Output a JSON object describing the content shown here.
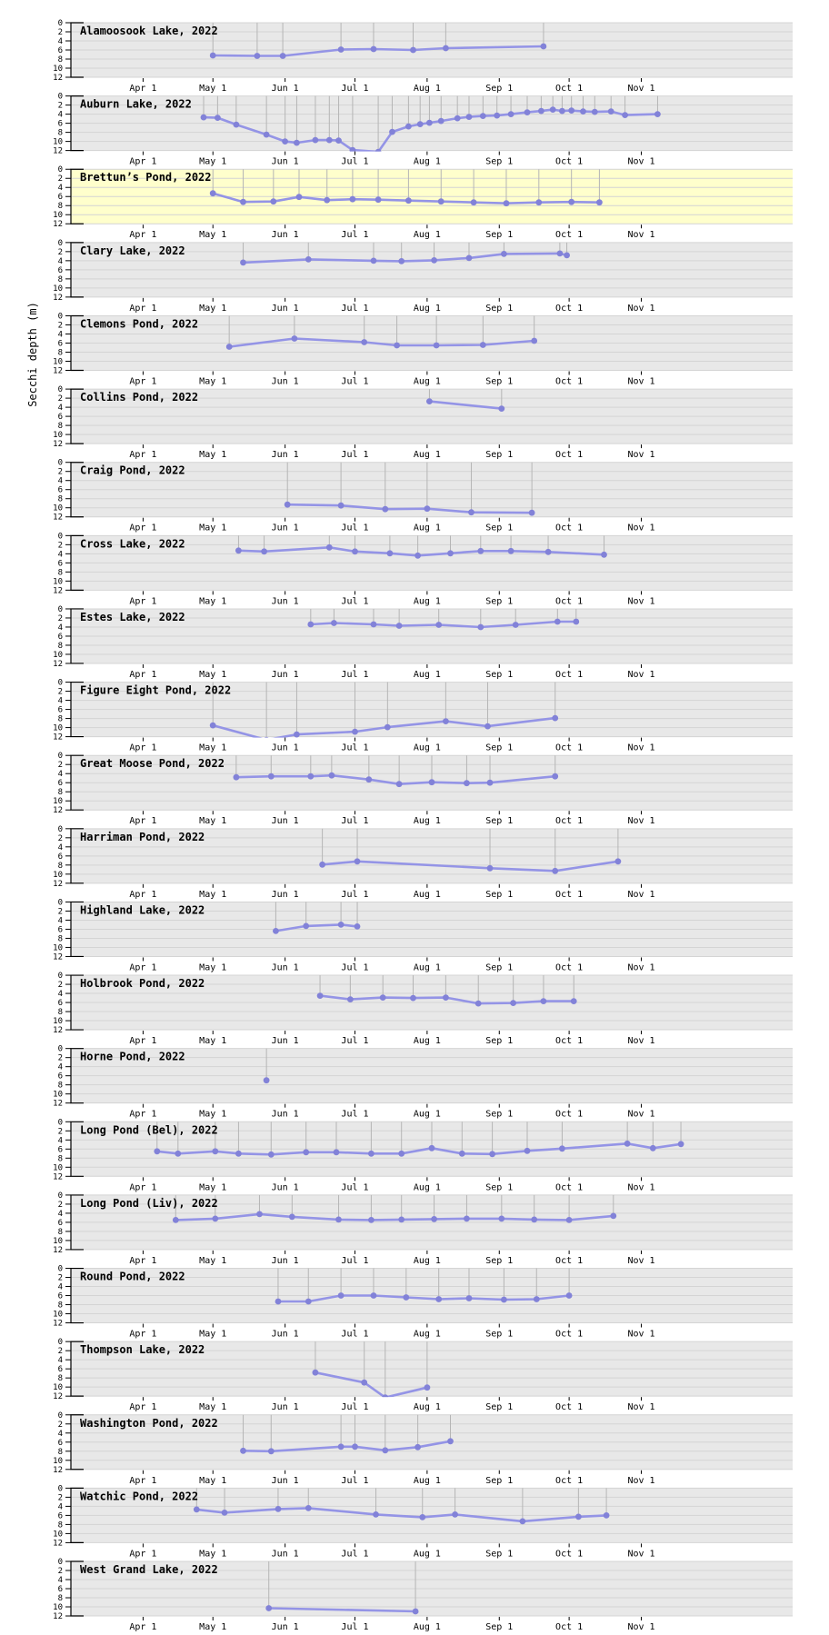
{
  "figure": {
    "ylabel": "Secchi depth (m)",
    "colors": {
      "page_bg": "#ffffff",
      "panel_bg": "#e8e8e8",
      "highlight_bg": "#ffffcc",
      "gridline": "#d4d4d4",
      "drop_line": "#b5b5b5",
      "series_line": "#9494e6",
      "marker": "#8282d8",
      "axis": "#000000"
    },
    "axes": {
      "y_ticks": [
        0,
        2,
        4,
        6,
        8,
        10,
        12
      ],
      "y_domain_m": [
        0,
        12
      ],
      "y_inverted": true,
      "x_tick_labels": [
        "Apr 1",
        "May 1",
        "Jun 1",
        "Jul 1",
        "Aug 1",
        "Sep 1",
        "Oct 1",
        "Nov 1"
      ],
      "x_tick_days": [
        91,
        121,
        152,
        182,
        213,
        244,
        274,
        305
      ],
      "x_domain_days": [
        60,
        370
      ],
      "x_encoding": "day_of_year_2022",
      "grid": "horizontal gridlines every 2 m; gray vertical drop line from surface (0 m) to each observation"
    }
  },
  "chart_data": [
    {
      "type": "line",
      "title": "Alamoosook Lake, 2022",
      "lake": "Alamoosook Lake",
      "year": 2022,
      "highlighted": false,
      "points_day_depth": [
        [
          121,
          7.2
        ],
        [
          140,
          7.3
        ],
        [
          151,
          7.3
        ],
        [
          176,
          5.9
        ],
        [
          190,
          5.8
        ],
        [
          207,
          6.0
        ],
        [
          221,
          5.6
        ],
        [
          263,
          5.2
        ]
      ]
    },
    {
      "type": "line",
      "title": "Auburn Lake, 2022",
      "lake": "Auburn Lake",
      "year": 2022,
      "highlighted": false,
      "points_day_depth": [
        [
          117,
          4.7
        ],
        [
          123,
          4.8
        ],
        [
          131,
          6.3
        ],
        [
          144,
          8.5
        ],
        [
          152,
          10.0
        ],
        [
          157,
          10.3
        ],
        [
          165,
          9.7
        ],
        [
          171,
          9.7
        ],
        [
          175,
          9.8
        ],
        [
          181,
          11.9
        ],
        [
          192,
          12.3
        ],
        [
          198,
          7.9
        ],
        [
          205,
          6.7
        ],
        [
          210,
          6.2
        ],
        [
          214,
          5.9
        ],
        [
          219,
          5.5
        ],
        [
          226,
          4.9
        ],
        [
          231,
          4.6
        ],
        [
          237,
          4.4
        ],
        [
          243,
          4.3
        ],
        [
          249,
          4.0
        ],
        [
          256,
          3.6
        ],
        [
          262,
          3.3
        ],
        [
          267,
          3.0
        ],
        [
          271,
          3.3
        ],
        [
          275,
          3.2
        ],
        [
          280,
          3.4
        ],
        [
          285,
          3.5
        ],
        [
          292,
          3.4
        ],
        [
          298,
          4.2
        ],
        [
          312,
          4.0
        ]
      ]
    },
    {
      "type": "line",
      "title": "Brettun’s Pond, 2022",
      "lake": "Brettun’s Pond",
      "year": 2022,
      "highlighted": true,
      "points_day_depth": [
        [
          121,
          5.3
        ],
        [
          134,
          7.2
        ],
        [
          147,
          7.1
        ],
        [
          158,
          6.1
        ],
        [
          170,
          6.8
        ],
        [
          181,
          6.6
        ],
        [
          192,
          6.7
        ],
        [
          205,
          6.9
        ],
        [
          219,
          7.1
        ],
        [
          233,
          7.3
        ],
        [
          247,
          7.5
        ],
        [
          261,
          7.3
        ],
        [
          275,
          7.2
        ],
        [
          287,
          7.3
        ]
      ]
    },
    {
      "type": "line",
      "title": "Clary Lake, 2022",
      "lake": "Clary Lake",
      "year": 2022,
      "highlighted": false,
      "points_day_depth": [
        [
          134,
          4.4
        ],
        [
          162,
          3.7
        ],
        [
          190,
          4.0
        ],
        [
          202,
          4.1
        ],
        [
          216,
          3.9
        ],
        [
          231,
          3.4
        ],
        [
          246,
          2.5
        ],
        [
          270,
          2.4
        ],
        [
          273,
          2.8
        ]
      ]
    },
    {
      "type": "line",
      "title": "Clemons Pond, 2022",
      "lake": "Clemons Pond",
      "year": 2022,
      "highlighted": false,
      "points_day_depth": [
        [
          128,
          6.8
        ],
        [
          156,
          5.0
        ],
        [
          186,
          5.8
        ],
        [
          200,
          6.5
        ],
        [
          217,
          6.5
        ],
        [
          237,
          6.4
        ],
        [
          259,
          5.5
        ]
      ]
    },
    {
      "type": "line",
      "title": "Collins Pond, 2022",
      "lake": "Collins Pond",
      "year": 2022,
      "highlighted": false,
      "points_day_depth": [
        [
          214,
          2.7
        ],
        [
          245,
          4.3
        ]
      ]
    },
    {
      "type": "line",
      "title": "Craig Pond, 2022",
      "lake": "Craig Pond",
      "year": 2022,
      "highlighted": false,
      "points_day_depth": [
        [
          153,
          9.3
        ],
        [
          176,
          9.5
        ],
        [
          195,
          10.3
        ],
        [
          213,
          10.2
        ],
        [
          232,
          11.0
        ],
        [
          258,
          11.1
        ]
      ]
    },
    {
      "type": "line",
      "title": "Cross Lake, 2022",
      "lake": "Cross Lake",
      "year": 2022,
      "highlighted": false,
      "points_day_depth": [
        [
          132,
          3.3
        ],
        [
          143,
          3.5
        ],
        [
          171,
          2.6
        ],
        [
          182,
          3.5
        ],
        [
          197,
          3.9
        ],
        [
          209,
          4.4
        ],
        [
          223,
          3.9
        ],
        [
          236,
          3.4
        ],
        [
          249,
          3.4
        ],
        [
          265,
          3.6
        ],
        [
          289,
          4.2
        ]
      ]
    },
    {
      "type": "line",
      "title": "Estes Lake, 2022",
      "lake": "Estes Lake",
      "year": 2022,
      "highlighted": false,
      "points_day_depth": [
        [
          163,
          3.4
        ],
        [
          173,
          3.1
        ],
        [
          190,
          3.4
        ],
        [
          201,
          3.7
        ],
        [
          218,
          3.5
        ],
        [
          236,
          4.0
        ],
        [
          251,
          3.5
        ],
        [
          269,
          2.8
        ],
        [
          277,
          2.8
        ]
      ]
    },
    {
      "type": "line",
      "title": "Figure Eight Pond, 2022",
      "lake": "Figure Eight Pond",
      "year": 2022,
      "highlighted": false,
      "points_day_depth": [
        [
          121,
          9.5
        ],
        [
          144,
          12.7
        ],
        [
          157,
          11.5
        ],
        [
          182,
          10.9
        ],
        [
          196,
          9.9
        ],
        [
          221,
          8.6
        ],
        [
          239,
          9.7
        ],
        [
          268,
          7.9
        ]
      ]
    },
    {
      "type": "line",
      "title": "Great Moose Pond, 2022",
      "lake": "Great Moose Pond",
      "year": 2022,
      "highlighted": false,
      "points_day_depth": [
        [
          131,
          4.8
        ],
        [
          146,
          4.6
        ],
        [
          163,
          4.6
        ],
        [
          172,
          4.4
        ],
        [
          188,
          5.3
        ],
        [
          201,
          6.3
        ],
        [
          215,
          5.9
        ],
        [
          230,
          6.1
        ],
        [
          240,
          6.0
        ],
        [
          268,
          4.6
        ]
      ]
    },
    {
      "type": "line",
      "title": "Harriman Pond, 2022",
      "lake": "Harriman Pond",
      "year": 2022,
      "highlighted": false,
      "points_day_depth": [
        [
          168,
          7.9
        ],
        [
          183,
          7.2
        ],
        [
          240,
          8.7
        ],
        [
          268,
          9.3
        ],
        [
          295,
          7.2
        ]
      ]
    },
    {
      "type": "line",
      "title": "Highland Lake, 2022",
      "lake": "Highland Lake",
      "year": 2022,
      "highlighted": false,
      "points_day_depth": [
        [
          148,
          6.4
        ],
        [
          161,
          5.3
        ],
        [
          176,
          5.0
        ],
        [
          183,
          5.4
        ]
      ]
    },
    {
      "type": "line",
      "title": "Holbrook Pond, 2022",
      "lake": "Holbrook Pond",
      "year": 2022,
      "highlighted": false,
      "points_day_depth": [
        [
          167,
          4.5
        ],
        [
          180,
          5.3
        ],
        [
          194,
          4.9
        ],
        [
          207,
          5.0
        ],
        [
          221,
          4.9
        ],
        [
          235,
          6.2
        ],
        [
          250,
          6.1
        ],
        [
          263,
          5.7
        ],
        [
          276,
          5.7
        ]
      ]
    },
    {
      "type": "line",
      "title": "Horne Pond, 2022",
      "lake": "Horne Pond",
      "year": 2022,
      "highlighted": false,
      "points_day_depth": [
        [
          144,
          7.0
        ]
      ]
    },
    {
      "type": "line",
      "title": "Long Pond (Bel), 2022",
      "lake": "Long Pond (Bel)",
      "year": 2022,
      "highlighted": false,
      "points_day_depth": [
        [
          97,
          6.5
        ],
        [
          106,
          7.0
        ],
        [
          122,
          6.5
        ],
        [
          132,
          7.0
        ],
        [
          146,
          7.2
        ],
        [
          161,
          6.7
        ],
        [
          174,
          6.7
        ],
        [
          189,
          7.0
        ],
        [
          202,
          7.0
        ],
        [
          215,
          5.8
        ],
        [
          228,
          7.0
        ],
        [
          241,
          7.1
        ],
        [
          256,
          6.4
        ],
        [
          271,
          5.9
        ],
        [
          299,
          4.8
        ],
        [
          310,
          5.8
        ],
        [
          322,
          4.9
        ]
      ]
    },
    {
      "type": "line",
      "title": "Long Pond (Liv), 2022",
      "lake": "Long Pond (Liv)",
      "year": 2022,
      "highlighted": false,
      "points_day_depth": [
        [
          105,
          5.5
        ],
        [
          122,
          5.2
        ],
        [
          141,
          4.2
        ],
        [
          155,
          4.8
        ],
        [
          175,
          5.4
        ],
        [
          189,
          5.5
        ],
        [
          202,
          5.4
        ],
        [
          216,
          5.3
        ],
        [
          230,
          5.2
        ],
        [
          245,
          5.2
        ],
        [
          259,
          5.4
        ],
        [
          274,
          5.5
        ],
        [
          293,
          4.6
        ]
      ]
    },
    {
      "type": "line",
      "title": "Round Pond, 2022",
      "lake": "Round Pond",
      "year": 2022,
      "highlighted": false,
      "points_day_depth": [
        [
          149,
          7.3
        ],
        [
          162,
          7.3
        ],
        [
          176,
          6.0
        ],
        [
          190,
          6.0
        ],
        [
          204,
          6.4
        ],
        [
          218,
          6.8
        ],
        [
          231,
          6.6
        ],
        [
          246,
          6.9
        ],
        [
          260,
          6.8
        ],
        [
          274,
          6.0
        ]
      ]
    },
    {
      "type": "line",
      "title": "Thompson Lake, 2022",
      "lake": "Thompson Lake",
      "year": 2022,
      "highlighted": false,
      "points_day_depth": [
        [
          165,
          6.8
        ],
        [
          186,
          9.0
        ],
        [
          195,
          12.3
        ],
        [
          213,
          10.1
        ]
      ]
    },
    {
      "type": "line",
      "title": "Washington Pond, 2022",
      "lake": "Washington Pond",
      "year": 2022,
      "highlighted": false,
      "points_day_depth": [
        [
          134,
          7.9
        ],
        [
          146,
          8.0
        ],
        [
          176,
          7.0
        ],
        [
          182,
          7.0
        ],
        [
          195,
          7.8
        ],
        [
          209,
          7.1
        ],
        [
          223,
          5.8
        ]
      ]
    },
    {
      "type": "line",
      "title": "Watchic Pond, 2022",
      "lake": "Watchic Pond",
      "year": 2022,
      "highlighted": false,
      "points_day_depth": [
        [
          114,
          4.7
        ],
        [
          126,
          5.4
        ],
        [
          149,
          4.6
        ],
        [
          162,
          4.4
        ],
        [
          191,
          5.8
        ],
        [
          211,
          6.4
        ],
        [
          225,
          5.8
        ],
        [
          254,
          7.3
        ],
        [
          278,
          6.3
        ],
        [
          290,
          6.0
        ]
      ]
    },
    {
      "type": "line",
      "title": "West Grand Lake, 2022",
      "lake": "West Grand Lake",
      "year": 2022,
      "highlighted": false,
      "points_day_depth": [
        [
          145,
          10.3
        ],
        [
          208,
          11.0
        ]
      ]
    }
  ]
}
